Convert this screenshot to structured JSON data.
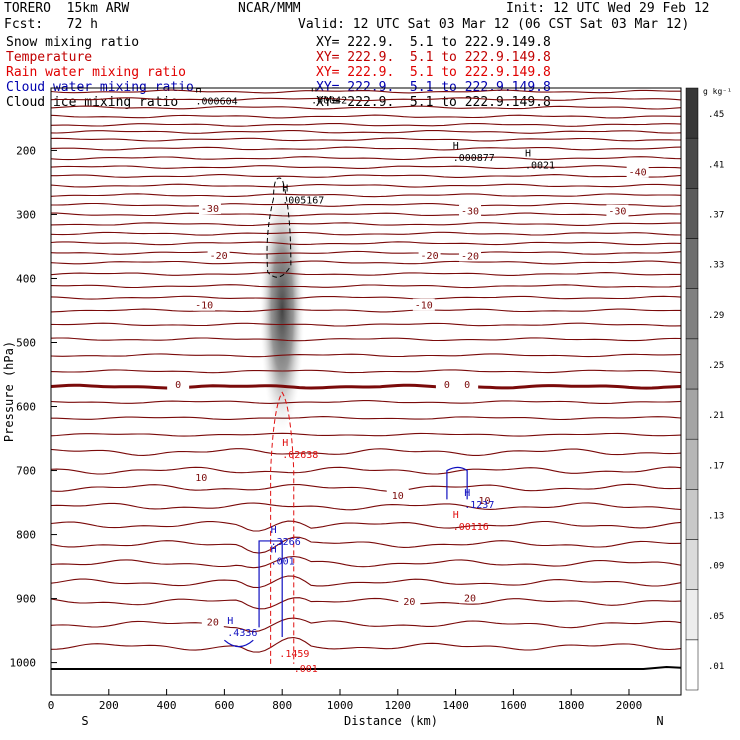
{
  "header": {
    "model": "TORERO  15km ARW",
    "center": "NCAR/MMM",
    "init": "Init: 12 UTC Wed 29 Feb 12",
    "fcst": "Fcst:   72 h",
    "valid": "Valid: 12 UTC Sat 03 Mar 12 (06 CST Sat 03 Mar 12)",
    "fields": [
      {
        "name": "Snow mixing ratio",
        "xy": "XY= 222.9.  5.1 to 222.9.149.8",
        "color": "#000000"
      },
      {
        "name": "Temperature",
        "xy": "XY= 222.9.  5.1 to 222.9.149.8",
        "color": "#c00000"
      },
      {
        "name": "Rain water mixing ratio",
        "xy": "XY= 222.9.  5.1 to 222.9.149.8",
        "color": "#e00000"
      },
      {
        "name": "Cloud water mixing ratio",
        "xy": "XY= 222.9.  5.1 to 222.9.149.8",
        "color": "#0000b0"
      },
      {
        "name": "Cloud ice mixing ratio",
        "xy": "XY= 222.9.  5.1 to 222.9.149.8",
        "color": "#000000"
      }
    ]
  },
  "colors": {
    "isotherm": "#7a0a0a",
    "rain": "#e01010",
    "cloudwater": "#1010c0",
    "ice": "#000000"
  },
  "chart_data": {
    "type": "cross-section",
    "xlabel": "Distance (km)",
    "ylabel": "Pressure (hPa)",
    "xlim": [
      0,
      2180
    ],
    "ylim": [
      1050,
      100
    ],
    "xticks": [
      0,
      200,
      400,
      600,
      800,
      1000,
      1200,
      1400,
      1600,
      1800,
      2000
    ],
    "yticks": [
      200,
      300,
      400,
      500,
      600,
      700,
      800,
      900,
      1000
    ],
    "left_end_label": "S",
    "right_end_label": "N",
    "colorbar": {
      "unit": "g kg⁻¹",
      "ticks": [
        ".01",
        ".05",
        ".09",
        ".13",
        ".17",
        ".21",
        ".25",
        ".29",
        ".33",
        ".37",
        ".41",
        ".45"
      ]
    },
    "isotherm_levels_hpa": [
      108,
      120,
      133,
      147,
      160,
      171,
      183,
      197,
      212,
      226,
      240,
      255,
      270,
      285,
      300,
      315,
      330,
      345,
      360,
      375,
      393,
      412,
      430,
      450,
      472,
      495,
      520,
      545,
      569,
      593,
      618,
      644,
      671,
      700,
      727,
      756,
      785,
      815,
      845,
      875,
      905,
      940,
      975
    ],
    "freezing_level_hpa": 569,
    "temperature_labels": [
      {
        "text": "-40",
        "x": 2030,
        "p": 233
      },
      {
        "text": "-30",
        "x": 550,
        "p": 290
      },
      {
        "text": "-30",
        "x": 1450,
        "p": 294
      },
      {
        "text": "-30",
        "x": 1960,
        "p": 294
      },
      {
        "text": "-20",
        "x": 580,
        "p": 363
      },
      {
        "text": "-20",
        "x": 1310,
        "p": 363
      },
      {
        "text": "-20",
        "x": 1450,
        "p": 364
      },
      {
        "text": "-10",
        "x": 530,
        "p": 441
      },
      {
        "text": "-10",
        "x": 1290,
        "p": 441
      },
      {
        "text": "0",
        "x": 440,
        "p": 565
      },
      {
        "text": "0",
        "x": 1370,
        "p": 565
      },
      {
        "text": "0",
        "x": 1440,
        "p": 565
      },
      {
        "text": "10",
        "x": 520,
        "p": 710
      },
      {
        "text": "10",
        "x": 1200,
        "p": 738
      },
      {
        "text": "10",
        "x": 1500,
        "p": 746
      },
      {
        "text": "20",
        "x": 560,
        "p": 936
      },
      {
        "text": "20",
        "x": 1240,
        "p": 904
      },
      {
        "text": "20",
        "x": 1450,
        "p": 898
      }
    ],
    "maxima": [
      {
        "label": "H",
        "value": ".000604",
        "x": 500,
        "p": 116,
        "color": "#000000"
      },
      {
        "label": "H",
        "value": ".00042",
        "x": 900,
        "p": 114,
        "color": "#000000"
      },
      {
        "label": "H",
        "value": ".000877",
        "x": 1390,
        "p": 204,
        "color": "#000000"
      },
      {
        "label": "H",
        "value": ".0021",
        "x": 1640,
        "p": 216,
        "color": "#000000"
      },
      {
        "label": "H",
        "value": ".005167",
        "x": 800,
        "p": 270,
        "color": "#000000"
      },
      {
        "label": "H",
        "value": ".02638",
        "x": 800,
        "p": 668,
        "color": "#e01010"
      },
      {
        "label": "H",
        "value": ".1237",
        "x": 1430,
        "p": 746,
        "color": "#1010c0"
      },
      {
        "label": "H",
        "value": ".00116",
        "x": 1390,
        "p": 780,
        "color": "#e01010"
      },
      {
        "label": "H",
        "value": ".3266",
        "x": 760,
        "p": 804,
        "color": "#1010c0"
      },
      {
        "label": "H",
        "value": ".001",
        "x": 760,
        "p": 834,
        "color": "#1010c0"
      },
      {
        "label": "H",
        "value": ".4336",
        "x": 610,
        "p": 946,
        "color": "#1010c0"
      },
      {
        "label": "",
        "value": ".1459",
        "x": 790,
        "p": 979,
        "color": "#e01010"
      },
      {
        "label": "",
        "value": ".001",
        "x": 840,
        "p": 1002,
        "color": "#e01010"
      }
    ],
    "snow_shading": {
      "center_x": 800,
      "p_top": 220,
      "p_bottom": 600,
      "max": 0.45
    }
  }
}
